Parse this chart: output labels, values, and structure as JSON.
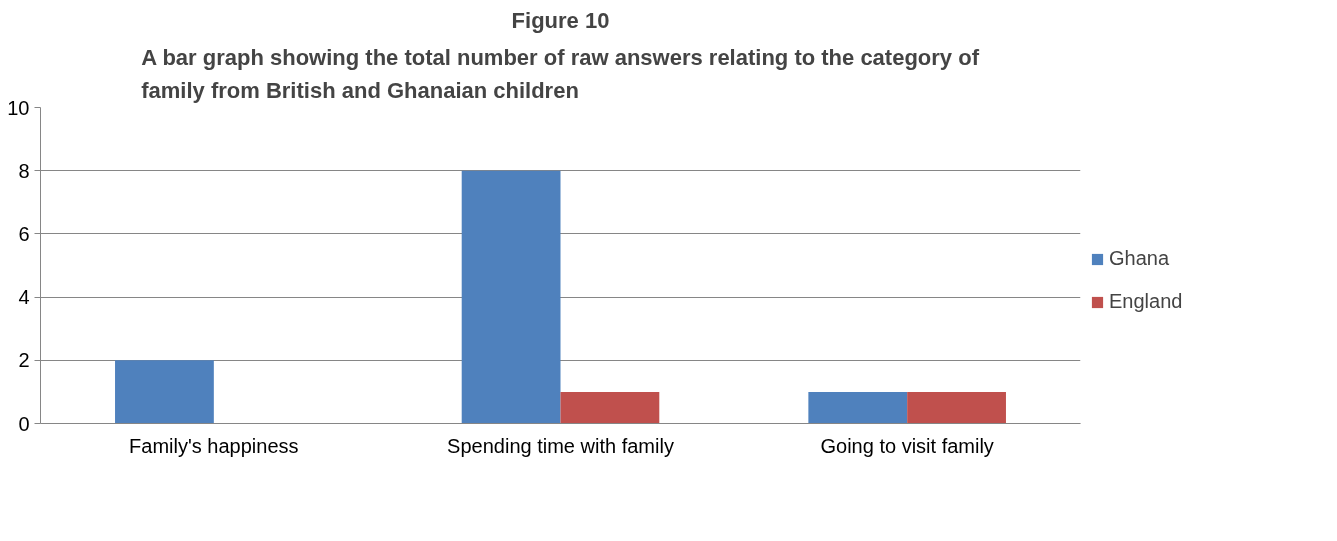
{
  "chart_data": {
    "type": "bar",
    "title": "Figure 10",
    "subtitle": "A bar graph showing the total number of raw answers relating to the category of family from British and Ghanaian children",
    "categories": [
      "Family's happiness",
      "Spending time with family",
      "Going to visit family"
    ],
    "series": [
      {
        "name": "Ghana",
        "color": "#4f81bd",
        "values": [
          2,
          8,
          1
        ]
      },
      {
        "name": "England",
        "color": "#c0504d",
        "values": [
          0,
          1,
          1
        ]
      }
    ],
    "ylim": [
      0,
      10
    ],
    "yticks": [
      0,
      2,
      4,
      6,
      8,
      10
    ],
    "grid": "y",
    "legend": "right"
  }
}
